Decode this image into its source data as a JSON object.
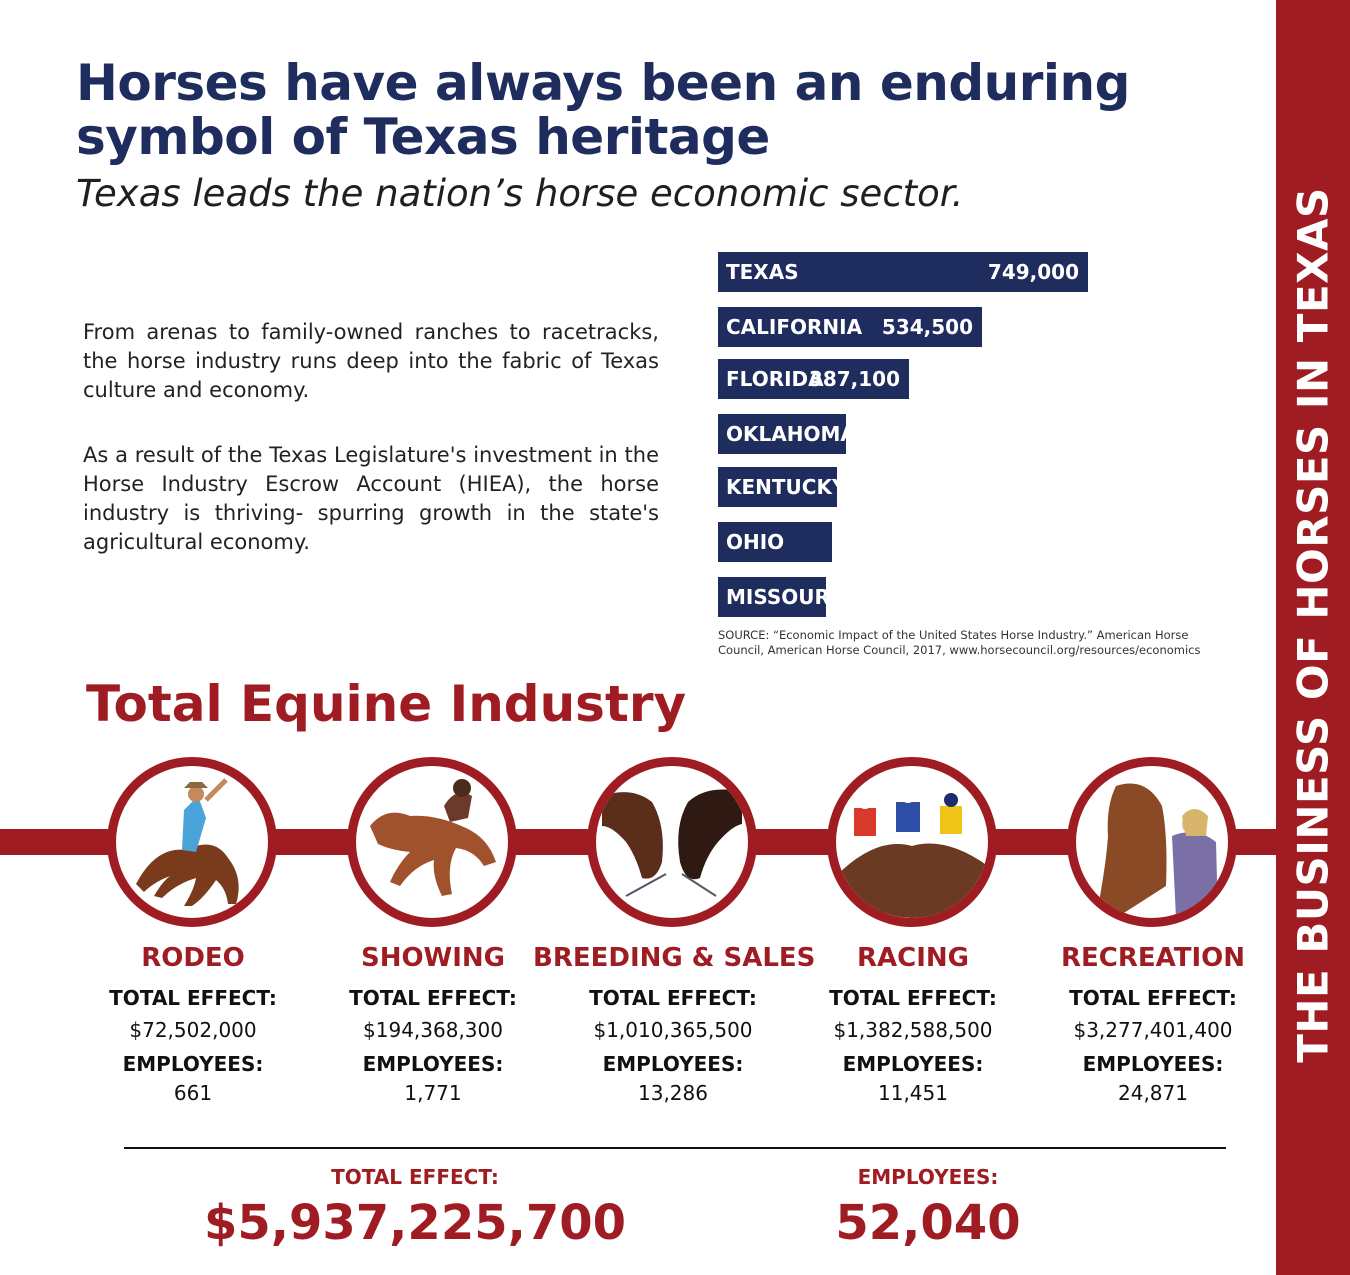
{
  "side_banner": "THE BUSINESS OF HORSES IN TEXAS",
  "headline": "Horses have always been an enduring symbol of Texas heritage",
  "subhead": "Texas leads the nation’s horse economic sector.",
  "paragraphs": [
    "From arenas to family-owned ranches to racetracks, the horse industry runs deep into the fabric of Texas culture and economy.",
    "As a result of the Texas Legislature's investment in the Horse Industry Escrow Account (HIEA), the horse industry is thriving- spurring growth in the state's agricultural economy."
  ],
  "chart_data": {
    "type": "bar",
    "orientation": "horizontal",
    "categories": [
      "TEXAS",
      "CALIFORNIA",
      "FLORIDA",
      "OKLAHOMA",
      "KENTUCKY",
      "OHIO",
      "MISSOURI"
    ],
    "values": [
      749000,
      534500,
      387100,
      260000,
      241000,
      230000,
      218000
    ],
    "value_labels": [
      "749,000",
      "534,500",
      "387,100",
      "",
      "",
      "",
      ""
    ],
    "bar_color": "#1f2c5e"
  },
  "source": "SOURCE: “Economic Impact of the United States Horse Industry.” American Horse Council, American Horse Council, 2017, www.horsecouncil.org/resources/economics",
  "section_title": "Total Equine Industry",
  "labels": {
    "total_effect": "TOTAL EFFECT:",
    "employees": "EMPLOYEES:"
  },
  "segments": [
    {
      "name": "RODEO",
      "total_effect": "$72,502,000",
      "employees": "661"
    },
    {
      "name": "SHOWING",
      "total_effect": "$194,368,300",
      "employees": "1,771"
    },
    {
      "name": "BREEDING & SALES",
      "total_effect": "$1,010,365,500",
      "employees": "13,286"
    },
    {
      "name": "RACING",
      "total_effect": "$1,382,588,500",
      "employees": "11,451"
    },
    {
      "name": "RECREATION",
      "total_effect": "$3,277,401,400",
      "employees": "24,871"
    }
  ],
  "totals": {
    "total_effect_label": "TOTAL EFFECT:",
    "total_effect": "$5,937,225,700",
    "employees_label": "EMPLOYEES:",
    "employees": "52,040"
  },
  "colors": {
    "navy": "#1f2c5e",
    "red": "#9f1c22"
  },
  "icons": [
    "rodeo-horse-photo",
    "showing-jump-photo",
    "breeding-horses-photo",
    "racing-horses-photo",
    "recreation-horse-photo"
  ]
}
